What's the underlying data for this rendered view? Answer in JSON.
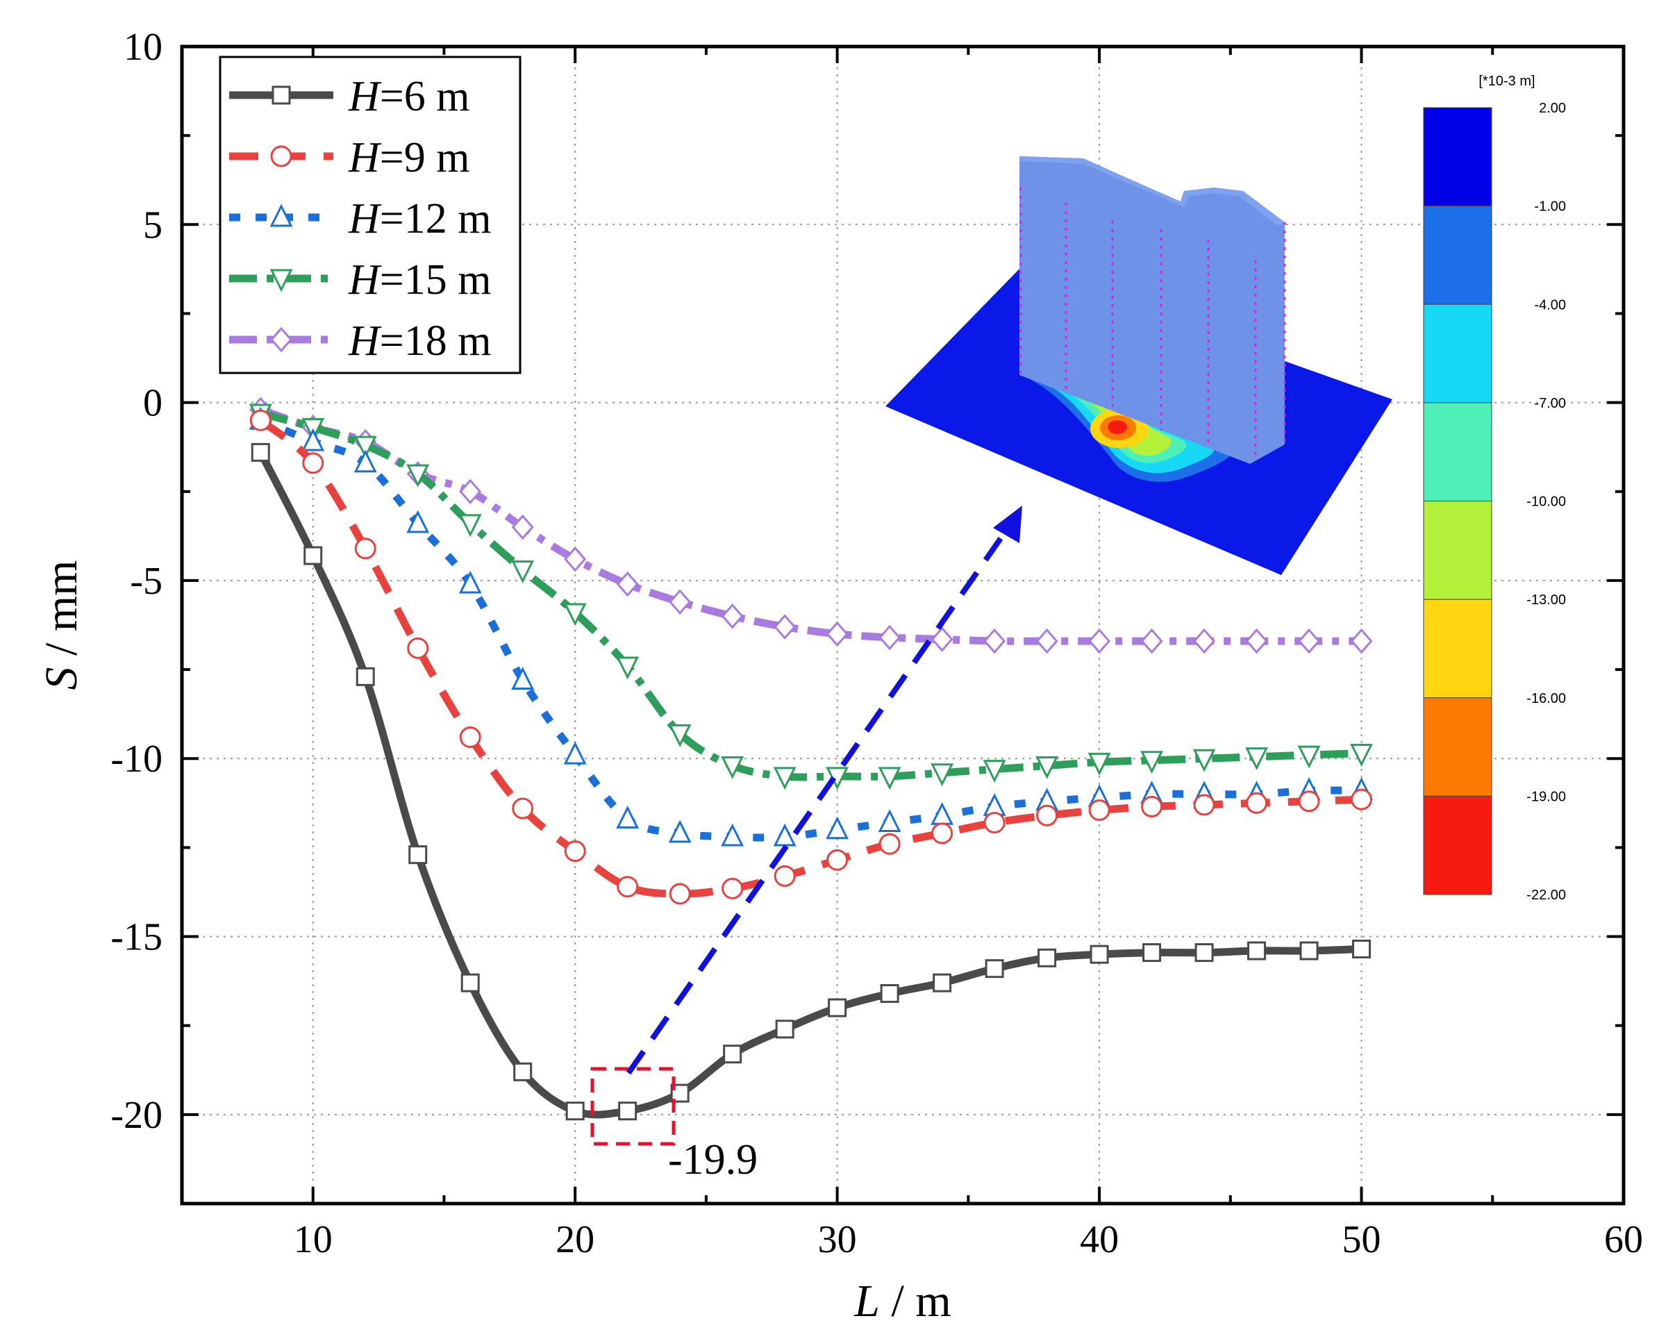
{
  "chart_data": {
    "type": "line",
    "xlabel": "L",
    "xunit": " / m",
    "ylabel": "S",
    "yunit": " / mm",
    "xlim": [
      5,
      60
    ],
    "ylim": [
      -22.5,
      10
    ],
    "xticks": [
      10,
      20,
      30,
      40,
      50,
      60
    ],
    "yticks": [
      10,
      5,
      0,
      -5,
      -10,
      -15,
      -20
    ],
    "x": [
      8,
      10,
      12,
      14,
      16,
      18,
      20,
      22,
      24,
      26,
      28,
      30,
      32,
      34,
      36,
      38,
      40,
      42,
      44,
      46,
      48,
      50
    ],
    "series": [
      {
        "name": "H=6 m",
        "label_italic": "H",
        "label_rest": "=6 m",
        "color": "#4a4a4a",
        "style": "solid",
        "marker": "square",
        "values": [
          -1.4,
          -4.3,
          -7.7,
          -12.7,
          -16.3,
          -18.8,
          -19.9,
          -19.9,
          -19.4,
          -18.3,
          -17.6,
          -17.0,
          -16.6,
          -16.3,
          -15.9,
          -15.6,
          -15.5,
          -15.45,
          -15.45,
          -15.4,
          -15.4,
          -15.35
        ]
      },
      {
        "name": "H=9 m",
        "label_italic": "H",
        "label_rest": "=9 m",
        "color": "#e8423f",
        "style": "dash",
        "marker": "circle",
        "values": [
          -0.5,
          -1.7,
          -4.1,
          -6.9,
          -9.4,
          -11.4,
          -12.6,
          -13.6,
          -13.8,
          -13.65,
          -13.3,
          -12.85,
          -12.4,
          -12.1,
          -11.8,
          -11.6,
          -11.45,
          -11.35,
          -11.3,
          -11.25,
          -11.2,
          -11.15
        ]
      },
      {
        "name": "H=12 m",
        "label_italic": "H",
        "label_rest": "=12 m",
        "color": "#1a6fd8",
        "style": "dot",
        "marker": "triangle-up",
        "values": [
          -0.5,
          -1.1,
          -1.7,
          -3.4,
          -5.1,
          -7.8,
          -9.9,
          -11.7,
          -12.1,
          -12.2,
          -12.2,
          -12.0,
          -11.8,
          -11.6,
          -11.35,
          -11.2,
          -11.1,
          -11.0,
          -11.0,
          -11.0,
          -10.9,
          -10.9
        ]
      },
      {
        "name": "H=15 m",
        "label_italic": "H",
        "label_rest": "=15 m",
        "color": "#2e9e5b",
        "style": "dashdot",
        "marker": "triangle-down",
        "values": [
          -0.3,
          -0.7,
          -1.2,
          -2.0,
          -3.4,
          -4.7,
          -5.9,
          -7.4,
          -9.3,
          -10.2,
          -10.5,
          -10.5,
          -10.5,
          -10.4,
          -10.3,
          -10.2,
          -10.1,
          -10.05,
          -10.0,
          -9.95,
          -9.9,
          -9.85
        ]
      },
      {
        "name": "H=18 m",
        "label_italic": "H",
        "label_rest": "=18 m",
        "color": "#a97be0",
        "style": "dashdot",
        "marker": "diamond",
        "values": [
          -0.2,
          -0.7,
          -1.1,
          -2.0,
          -2.5,
          -3.5,
          -4.4,
          -5.1,
          -5.6,
          -6.0,
          -6.3,
          -6.5,
          -6.6,
          -6.65,
          -6.7,
          -6.7,
          -6.7,
          -6.7,
          -6.7,
          -6.7,
          -6.7,
          -6.7
        ]
      }
    ],
    "grid": true,
    "legend_position": "top-left",
    "annotation": {
      "text": "-19.9",
      "at": [
        22,
        -19.9
      ]
    },
    "inset": {
      "description": "3D settlement contour of building and ground",
      "colorbar_unit": "[*10-3 m]",
      "colorbar_ticks": [
        "2.00",
        "-1.00",
        "-4.00",
        "-7.00",
        "-10.00",
        "-13.00",
        "-16.00",
        "-19.00",
        "-22.00"
      ],
      "colorbar_colors": [
        "#0000e8",
        "#1c6fe8",
        "#17d8f5",
        "#4ff0b8",
        "#b2f03a",
        "#ffd60f",
        "#ff7a00",
        "#f71a10"
      ]
    }
  }
}
